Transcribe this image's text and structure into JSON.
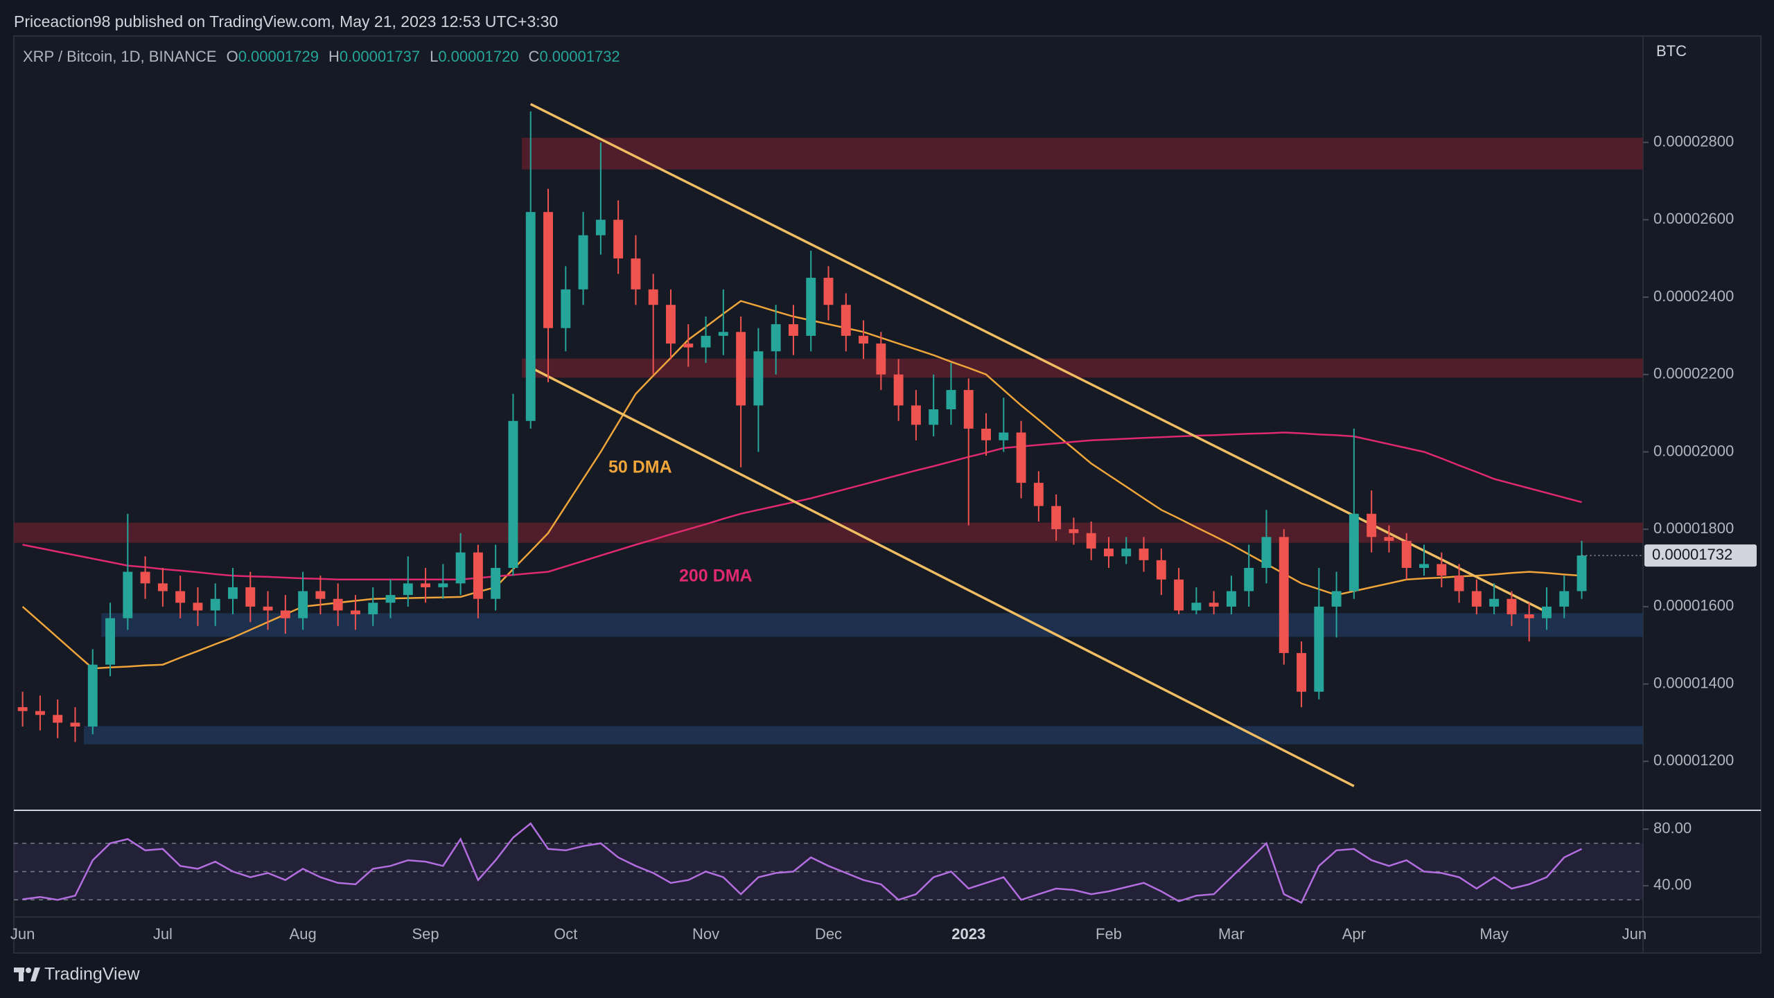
{
  "header": {
    "text": "Priceaction98 published on TradingView.com, May 21, 2023 12:53 UTC+3:30"
  },
  "footer": {
    "brand": "TradingView"
  },
  "chart_data": [
    {
      "type": "candlestick",
      "title": "XRP / Bitcoin, 1D, BINANCE",
      "ohlc": [
        {
          "label": "O",
          "value": "0.00001729"
        },
        {
          "label": "H",
          "value": "0.00001737"
        },
        {
          "label": "L",
          "value": "0.00001720"
        },
        {
          "label": "C",
          "value": "0.00001732"
        }
      ],
      "unit": "BTC",
      "up_color": "#26a69a",
      "down_color": "#ef5350",
      "categories": [
        "Jun",
        null,
        null,
        null,
        null,
        null,
        null,
        null,
        "Jul",
        null,
        null,
        null,
        null,
        null,
        null,
        null,
        "Aug",
        null,
        null,
        null,
        null,
        null,
        null,
        "Sep",
        null,
        null,
        null,
        null,
        null,
        null,
        null,
        "Oct",
        null,
        null,
        null,
        null,
        null,
        null,
        null,
        "Nov",
        null,
        null,
        null,
        null,
        null,
        null,
        "Dec",
        null,
        null,
        null,
        null,
        null,
        null,
        null,
        "2023",
        null,
        null,
        null,
        null,
        null,
        null,
        null,
        "Feb",
        null,
        null,
        null,
        null,
        null,
        null,
        "Mar",
        null,
        null,
        null,
        null,
        null,
        null,
        "Apr",
        null,
        null,
        null,
        null,
        null,
        null,
        null,
        "May",
        null,
        null,
        null,
        null,
        null,
        null,
        null,
        "Jun"
      ],
      "candles": {
        "open": [
          1.34e-05,
          1.33e-05,
          1.32e-05,
          1.3e-05,
          1.29e-05,
          1.45e-05,
          1.57e-05,
          1.69e-05,
          1.66e-05,
          1.64e-05,
          1.61e-05,
          1.59e-05,
          1.62e-05,
          1.65e-05,
          1.6e-05,
          1.59e-05,
          1.57e-05,
          1.64e-05,
          1.62e-05,
          1.59e-05,
          1.58e-05,
          1.61e-05,
          1.63e-05,
          1.66e-05,
          1.65e-05,
          1.66e-05,
          1.74e-05,
          1.62e-05,
          1.7e-05,
          2.08e-05,
          2.62e-05,
          2.32e-05,
          2.42e-05,
          2.56e-05,
          2.6e-05,
          2.5e-05,
          2.42e-05,
          2.38e-05,
          2.28e-05,
          2.27e-05,
          2.3e-05,
          2.31e-05,
          2.12e-05,
          2.26e-05,
          2.33e-05,
          2.3e-05,
          2.45e-05,
          2.38e-05,
          2.3e-05,
          2.28e-05,
          2.2e-05,
          2.12e-05,
          2.07e-05,
          2.11e-05,
          2.16e-05,
          2.06e-05,
          2.03e-05,
          2.05e-05,
          1.92e-05,
          1.86e-05,
          1.8e-05,
          1.79e-05,
          1.75e-05,
          1.73e-05,
          1.75e-05,
          1.72e-05,
          1.67e-05,
          1.59e-05,
          1.61e-05,
          1.6e-05,
          1.64e-05,
          1.7e-05,
          1.78e-05,
          1.48e-05,
          1.38e-05,
          1.6e-05,
          1.64e-05,
          1.84e-05,
          1.78e-05,
          1.77e-05,
          1.7e-05,
          1.71e-05,
          1.68e-05,
          1.64e-05,
          1.6e-05,
          1.62e-05,
          1.58e-05,
          1.57e-05,
          1.6e-05,
          1.64e-05,
          null,
          null,
          null
        ],
        "high": [
          1.38e-05,
          1.37e-05,
          1.36e-05,
          1.34e-05,
          1.49e-05,
          1.61e-05,
          1.84e-05,
          1.73e-05,
          1.7e-05,
          1.68e-05,
          1.65e-05,
          1.66e-05,
          1.7e-05,
          1.69e-05,
          1.64e-05,
          1.63e-05,
          1.69e-05,
          1.68e-05,
          1.66e-05,
          1.63e-05,
          1.65e-05,
          1.67e-05,
          1.73e-05,
          1.7e-05,
          1.71e-05,
          1.79e-05,
          1.76e-05,
          1.76e-05,
          2.15e-05,
          2.88e-05,
          2.68e-05,
          2.48e-05,
          2.62e-05,
          2.8e-05,
          2.65e-05,
          2.56e-05,
          2.46e-05,
          2.42e-05,
          2.33e-05,
          2.35e-05,
          2.42e-05,
          2.35e-05,
          2.32e-05,
          2.38e-05,
          2.38e-05,
          2.52e-05,
          2.48e-05,
          2.41e-05,
          2.34e-05,
          2.31e-05,
          2.24e-05,
          2.16e-05,
          2.2e-05,
          2.23e-05,
          2.19e-05,
          2.1e-05,
          2.14e-05,
          2.08e-05,
          1.95e-05,
          1.89e-05,
          1.83e-05,
          1.82e-05,
          1.78e-05,
          1.78e-05,
          1.78e-05,
          1.75e-05,
          1.7e-05,
          1.65e-05,
          1.64e-05,
          1.68e-05,
          1.76e-05,
          1.85e-05,
          1.8e-05,
          1.51e-05,
          1.7e-05,
          1.69e-05,
          2.06e-05,
          1.9e-05,
          1.81e-05,
          1.79e-05,
          1.76e-05,
          1.74e-05,
          1.71e-05,
          1.67e-05,
          1.66e-05,
          1.64e-05,
          1.61e-05,
          1.65e-05,
          1.68e-05,
          1.77e-05,
          null,
          null,
          null
        ],
        "low": [
          1.29e-05,
          1.28e-05,
          1.26e-05,
          1.25e-05,
          1.27e-05,
          1.42e-05,
          1.54e-05,
          1.62e-05,
          1.6e-05,
          1.57e-05,
          1.55e-05,
          1.55e-05,
          1.58e-05,
          1.56e-05,
          1.54e-05,
          1.53e-05,
          1.54e-05,
          1.58e-05,
          1.55e-05,
          1.54e-05,
          1.55e-05,
          1.57e-05,
          1.6e-05,
          1.61e-05,
          1.62e-05,
          1.63e-05,
          1.57e-05,
          1.59e-05,
          1.68e-05,
          2.06e-05,
          2.18e-05,
          2.26e-05,
          2.38e-05,
          2.51e-05,
          2.46e-05,
          2.38e-05,
          2.2e-05,
          2.24e-05,
          2.22e-05,
          2.23e-05,
          2.25e-05,
          1.96e-05,
          2e-05,
          2.2e-05,
          2.25e-05,
          2.26e-05,
          2.34e-05,
          2.26e-05,
          2.24e-05,
          2.16e-05,
          2.08e-05,
          2.03e-05,
          2.04e-05,
          2.07e-05,
          1.81e-05,
          1.99e-05,
          2e-05,
          1.88e-05,
          1.82e-05,
          1.77e-05,
          1.76e-05,
          1.72e-05,
          1.7e-05,
          1.71e-05,
          1.69e-05,
          1.63e-05,
          1.58e-05,
          1.58e-05,
          1.58e-05,
          1.58e-05,
          1.6e-05,
          1.66e-05,
          1.45e-05,
          1.34e-05,
          1.36e-05,
          1.52e-05,
          1.62e-05,
          1.74e-05,
          1.74e-05,
          1.67e-05,
          1.68e-05,
          1.65e-05,
          1.61e-05,
          1.58e-05,
          1.58e-05,
          1.55e-05,
          1.51e-05,
          1.54e-05,
          1.57e-05,
          1.62e-05,
          null,
          null,
          null
        ],
        "close": [
          1.33e-05,
          1.32e-05,
          1.3e-05,
          1.29e-05,
          1.45e-05,
          1.57e-05,
          1.69e-05,
          1.66e-05,
          1.64e-05,
          1.61e-05,
          1.59e-05,
          1.62e-05,
          1.65e-05,
          1.6e-05,
          1.59e-05,
          1.57e-05,
          1.64e-05,
          1.62e-05,
          1.59e-05,
          1.58e-05,
          1.61e-05,
          1.63e-05,
          1.66e-05,
          1.65e-05,
          1.66e-05,
          1.74e-05,
          1.62e-05,
          1.7e-05,
          2.08e-05,
          2.62e-05,
          2.32e-05,
          2.42e-05,
          2.56e-05,
          2.6e-05,
          2.5e-05,
          2.42e-05,
          2.38e-05,
          2.28e-05,
          2.27e-05,
          2.3e-05,
          2.31e-05,
          2.12e-05,
          2.26e-05,
          2.33e-05,
          2.3e-05,
          2.45e-05,
          2.38e-05,
          2.3e-05,
          2.28e-05,
          2.2e-05,
          2.12e-05,
          2.07e-05,
          2.11e-05,
          2.16e-05,
          2.06e-05,
          2.03e-05,
          2.05e-05,
          1.92e-05,
          1.86e-05,
          1.8e-05,
          1.79e-05,
          1.75e-05,
          1.73e-05,
          1.75e-05,
          1.72e-05,
          1.67e-05,
          1.59e-05,
          1.61e-05,
          1.6e-05,
          1.64e-05,
          1.7e-05,
          1.78e-05,
          1.48e-05,
          1.38e-05,
          1.6e-05,
          1.64e-05,
          1.84e-05,
          1.78e-05,
          1.77e-05,
          1.7e-05,
          1.71e-05,
          1.68e-05,
          1.64e-05,
          1.6e-05,
          1.62e-05,
          1.58e-05,
          1.57e-05,
          1.6e-05,
          1.64e-05,
          1.732e-05,
          null,
          null,
          null
        ]
      },
      "lines": [
        {
          "name": "50 DMA",
          "color": "#f0a53a",
          "values": [
            1.6e-05,
            1.56e-05,
            1.52e-05,
            1.48e-05,
            1.44e-05,
            1.443e-05,
            1.445e-05,
            1.448e-05,
            1.45e-05,
            1.468e-05,
            1.485e-05,
            1.503e-05,
            1.52e-05,
            1.54e-05,
            1.56e-05,
            1.58e-05,
            1.6e-05,
            1.605e-05,
            1.61e-05,
            1.615e-05,
            1.62e-05,
            1.621e-05,
            1.622e-05,
            1.623e-05,
            1.624e-05,
            1.625e-05,
            1.638e-05,
            1.65e-05,
            1.697e-05,
            1.743e-05,
            1.79e-05,
            1.86e-05,
            1.93e-05,
            2e-05,
            2.075e-05,
            2.15e-05,
            2.197e-05,
            2.243e-05,
            2.29e-05,
            2.323e-05,
            2.357e-05,
            2.39e-05,
            2.377e-05,
            2.363e-05,
            2.35e-05,
            2.34e-05,
            2.33e-05,
            2.32e-05,
            2.31e-05,
            2.295e-05,
            2.28e-05,
            2.265e-05,
            2.25e-05,
            2.233e-05,
            2.217e-05,
            2.2e-05,
            2.16e-05,
            2.12e-05,
            2.083e-05,
            2.045e-05,
            2.008e-05,
            1.97e-05,
            1.94e-05,
            1.91e-05,
            1.88e-05,
            1.85e-05,
            1.828e-05,
            1.805e-05,
            1.783e-05,
            1.76e-05,
            1.735e-05,
            1.71e-05,
            1.685e-05,
            1.66e-05,
            1.645e-05,
            1.63e-05,
            1.64e-05,
            1.65e-05,
            1.66e-05,
            1.67e-05,
            1.673e-05,
            1.675e-05,
            1.678e-05,
            1.68e-05,
            1.683e-05,
            1.687e-05,
            1.69e-05,
            1.687e-05,
            1.683e-05,
            1.68e-05,
            null,
            null,
            null
          ]
        },
        {
          "name": "200 DMA",
          "color": "#e0296e",
          "values": [
            1.76e-05,
            1.751e-05,
            1.742e-05,
            1.733e-05,
            1.724e-05,
            1.715e-05,
            1.706e-05,
            1.702e-05,
            1.697e-05,
            1.693e-05,
            1.689e-05,
            1.684e-05,
            1.68e-05,
            1.678e-05,
            1.677e-05,
            1.675e-05,
            1.673e-05,
            1.672e-05,
            1.67e-05,
            1.67e-05,
            1.67e-05,
            1.67e-05,
            1.67e-05,
            1.67e-05,
            1.67e-05,
            1.67e-05,
            1.674e-05,
            1.678e-05,
            1.682e-05,
            1.686e-05,
            1.69e-05,
            1.704e-05,
            1.718e-05,
            1.732e-05,
            1.746e-05,
            1.76e-05,
            1.773e-05,
            1.787e-05,
            1.8e-05,
            1.813e-05,
            1.827e-05,
            1.84e-05,
            1.85e-05,
            1.86e-05,
            1.87e-05,
            1.88e-05,
            1.892e-05,
            1.904e-05,
            1.916e-05,
            1.928e-05,
            1.94e-05,
            1.952e-05,
            1.963e-05,
            1.975e-05,
            1.987e-05,
            1.998e-05,
            2.01e-05,
            2.014e-05,
            2.018e-05,
            2.022e-05,
            2.026e-05,
            2.03e-05,
            2.032e-05,
            2.034e-05,
            2.036e-05,
            2.038e-05,
            2.04e-05,
            2.042e-05,
            2.043e-05,
            2.045e-05,
            2.047e-05,
            2.048e-05,
            2.05e-05,
            2.048e-05,
            2.045e-05,
            2.043e-05,
            2.04e-05,
            2.03e-05,
            2.02e-05,
            2.01e-05,
            2e-05,
            1.983e-05,
            1.965e-05,
            1.948e-05,
            1.93e-05,
            1.918e-05,
            1.906e-05,
            1.894e-05,
            1.882e-05,
            1.87e-05,
            null,
            null,
            null
          ]
        }
      ],
      "trend_lines": [
        {
          "color": "#f0bd63",
          "start": {
            "index": 29,
            "value": 2.899e-05
          },
          "end": {
            "index": 87,
            "value": 1.586e-05
          }
        },
        {
          "color": "#f0bd63",
          "start": {
            "index": 29,
            "value": 2.218e-05
          },
          "end": {
            "index": 76,
            "value": 1.136e-05
          }
        }
      ],
      "zones": [
        {
          "color": "#5a1f2b",
          "start": 29,
          "low": 2.73e-05,
          "high": 2.812e-05
        },
        {
          "color": "#5a1f2b",
          "start": 29,
          "low": 2.192e-05,
          "high": 2.241e-05
        },
        {
          "color": "#5a1f2b",
          "start": 0,
          "low": 1.765e-05,
          "high": 1.817e-05
        },
        {
          "color": "#1f3556",
          "start": 5,
          "low": 1.522e-05,
          "high": 1.583e-05
        },
        {
          "color": "#1f3556",
          "start": 4,
          "low": 1.244e-05,
          "high": 1.291e-05
        }
      ],
      "ylim": [
        1.077e-05,
        3.075e-05
      ],
      "yticks": [
        {
          "value": 1.2e-05,
          "label": "0.00001200"
        },
        {
          "value": 1.4e-05,
          "label": "0.00001400"
        },
        {
          "value": 1.6e-05,
          "label": "0.00001600"
        },
        {
          "value": 1.8e-05,
          "label": "0.00001800"
        },
        {
          "value": 2e-05,
          "label": "0.00002000"
        },
        {
          "value": 2.2e-05,
          "label": "0.00002200"
        },
        {
          "value": 2.4e-05,
          "label": "0.00002400"
        },
        {
          "value": 2.6e-05,
          "label": "0.00002600"
        },
        {
          "value": 2.8e-05,
          "label": "0.00002800"
        }
      ],
      "grid": false
    },
    {
      "type": "line",
      "color": "#b36ee0",
      "values": [
        30.4,
        32,
        30,
        33,
        58,
        70,
        73,
        65,
        66,
        54,
        52,
        57,
        50,
        46,
        49,
        44,
        52,
        46,
        42,
        41,
        52,
        54,
        58,
        57,
        54,
        73,
        44,
        58,
        74,
        84,
        66,
        65,
        68,
        70,
        60,
        54,
        49,
        42,
        44,
        50,
        46,
        34,
        46,
        49,
        50,
        60,
        54,
        49,
        44,
        41,
        30,
        34,
        46,
        50,
        38,
        42,
        46,
        30,
        34,
        38,
        37,
        34,
        36,
        39,
        42,
        36,
        29,
        33,
        34,
        46,
        58,
        70,
        34,
        28,
        54,
        65,
        66,
        58,
        54,
        58,
        50,
        49,
        46,
        38,
        46,
        38,
        41,
        46,
        60,
        66,
        null,
        null,
        null
      ],
      "levels": [
        30,
        50,
        70
      ],
      "band_color": "#7e57c2",
      "ylim": [
        18.4,
        92.8
      ],
      "yticks": [
        {
          "value": 40,
          "label": "40.00"
        },
        {
          "value": 80,
          "label": "80.00"
        }
      ],
      "grid": false
    }
  ]
}
